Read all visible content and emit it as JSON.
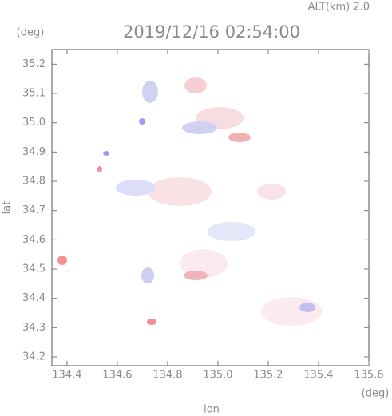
{
  "chart_data": {
    "type": "map",
    "title": "2019/12/16 02:54:00",
    "altitude_label": "ALT(km) 2.0",
    "y_unit": "(deg)",
    "x_unit": "(deg)",
    "xlabel": "lon",
    "ylabel": "lat",
    "xlim": [
      134.34,
      135.6
    ],
    "ylim": [
      34.17,
      35.25
    ],
    "xticks": [
      134.4,
      134.6,
      134.8,
      {
        "value": 135,
        "label": "135.0"
      },
      135.2,
      135.4,
      135.6
    ],
    "yticks": [
      34.2,
      34.3,
      34.4,
      34.5,
      34.6,
      34.7,
      34.8,
      34.9,
      {
        "value": 35,
        "label": "35.0"
      },
      35.1,
      35.2
    ]
  }
}
